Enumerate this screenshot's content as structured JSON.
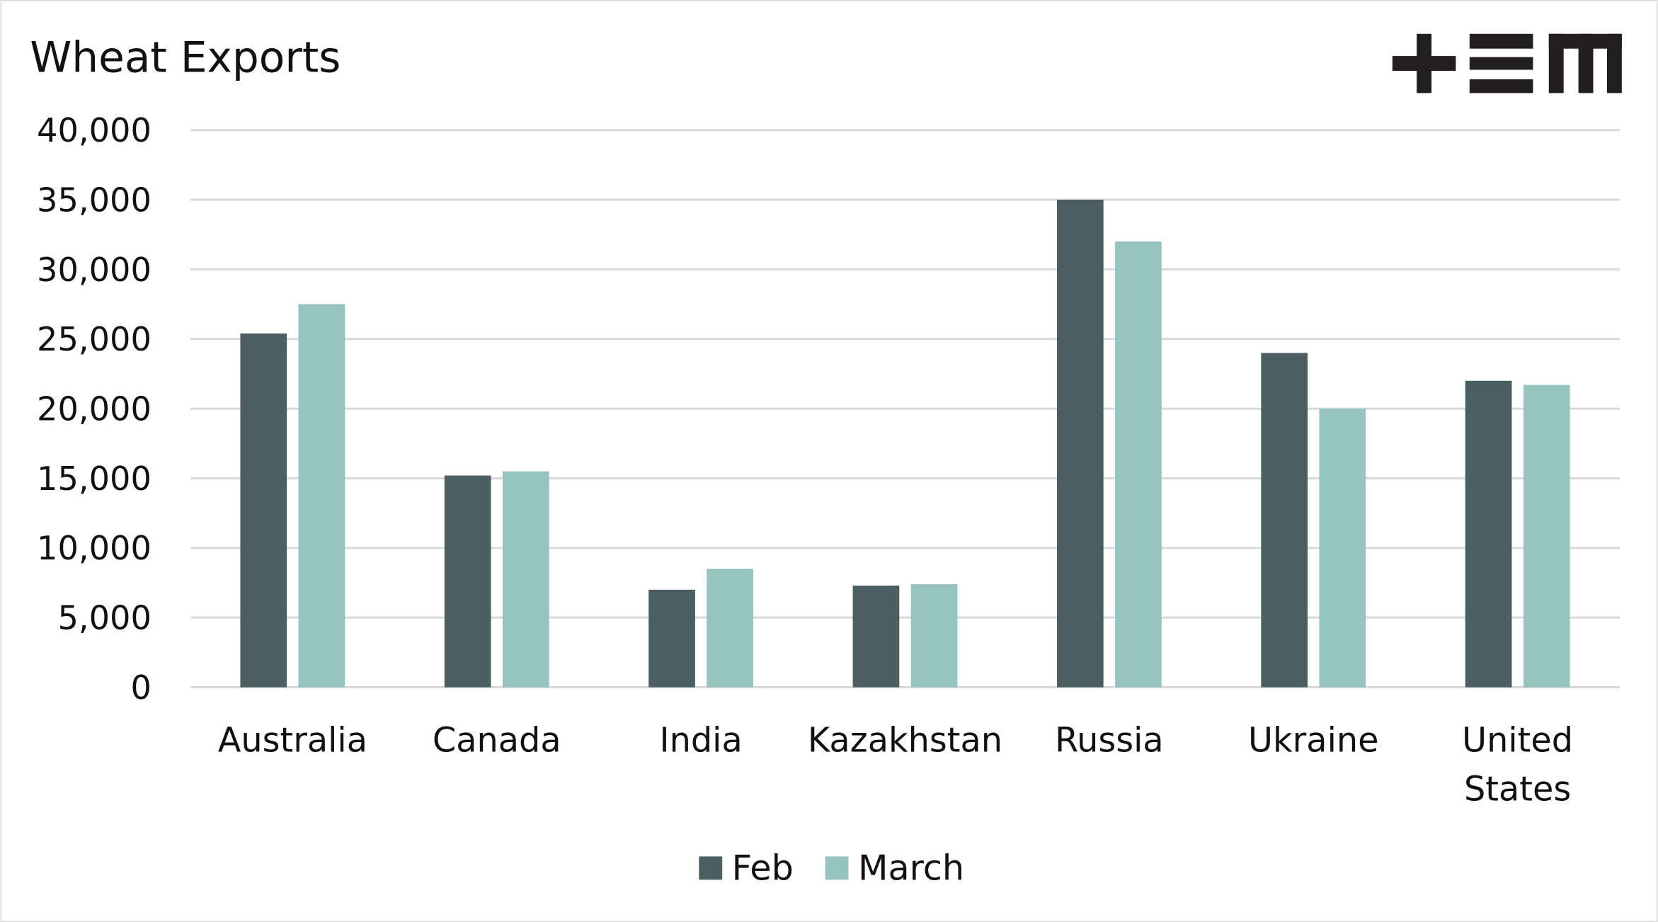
{
  "chart_data": {
    "type": "bar",
    "title": "Wheat Exports",
    "categories": [
      "Australia",
      "Canada",
      "India",
      "Kazakhstan",
      "Russia",
      "Ukraine",
      "United States"
    ],
    "series": [
      {
        "name": "Feb",
        "color": "#4b5e61",
        "values": [
          25400,
          15200,
          7000,
          7300,
          35000,
          24000,
          22000
        ]
      },
      {
        "name": "March",
        "color": "#96c2c0",
        "values": [
          27500,
          15500,
          8500,
          7400,
          32000,
          20000,
          21700
        ]
      }
    ],
    "ylim": [
      0,
      40000
    ],
    "yticks": [
      0,
      5000,
      10000,
      15000,
      20000,
      25000,
      30000,
      35000,
      40000
    ],
    "ytick_labels": [
      "0",
      "5,000",
      "10,000",
      "15,000",
      "20,000",
      "25,000",
      "30,000",
      "35,000",
      "40,000"
    ],
    "xlabel": "",
    "ylabel": "",
    "grid": true,
    "legend": "bottom"
  },
  "logo": {
    "text": "+EM",
    "color": "#231f20"
  },
  "frame_color": "#d9d9d9",
  "grid_color": "#d9d9d9"
}
